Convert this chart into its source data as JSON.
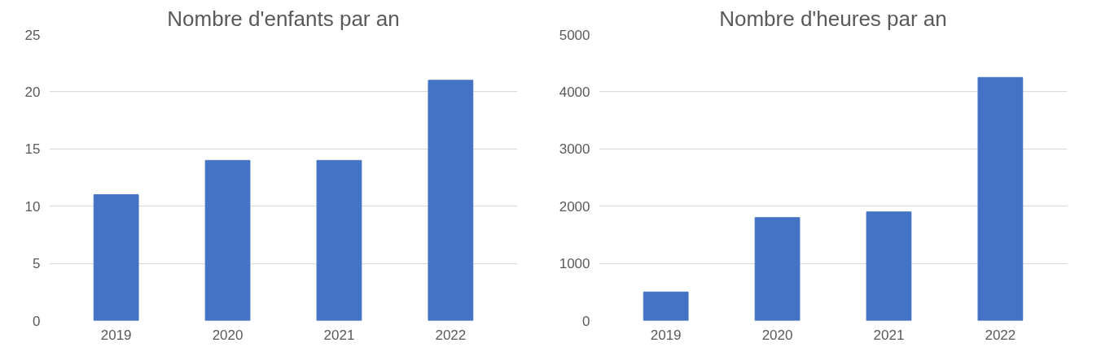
{
  "chart_data": [
    {
      "type": "bar",
      "title": "Nombre d'enfants par an",
      "categories": [
        "2019",
        "2020",
        "2021",
        "2022"
      ],
      "values": [
        11,
        14,
        14,
        21
      ],
      "color": "#4472c4",
      "ylim": [
        0,
        25
      ],
      "yticks": [
        0,
        5,
        10,
        15,
        20,
        25
      ],
      "grid": "y"
    },
    {
      "type": "bar",
      "title": "Nombre d'heures par an",
      "categories": [
        "2019",
        "2020",
        "2021",
        "2022"
      ],
      "values": [
        500,
        1800,
        1900,
        4250
      ],
      "color": "#4472c4",
      "ylim": [
        0,
        5000
      ],
      "yticks": [
        0,
        1000,
        2000,
        3000,
        4000,
        5000
      ],
      "grid": "y"
    }
  ]
}
